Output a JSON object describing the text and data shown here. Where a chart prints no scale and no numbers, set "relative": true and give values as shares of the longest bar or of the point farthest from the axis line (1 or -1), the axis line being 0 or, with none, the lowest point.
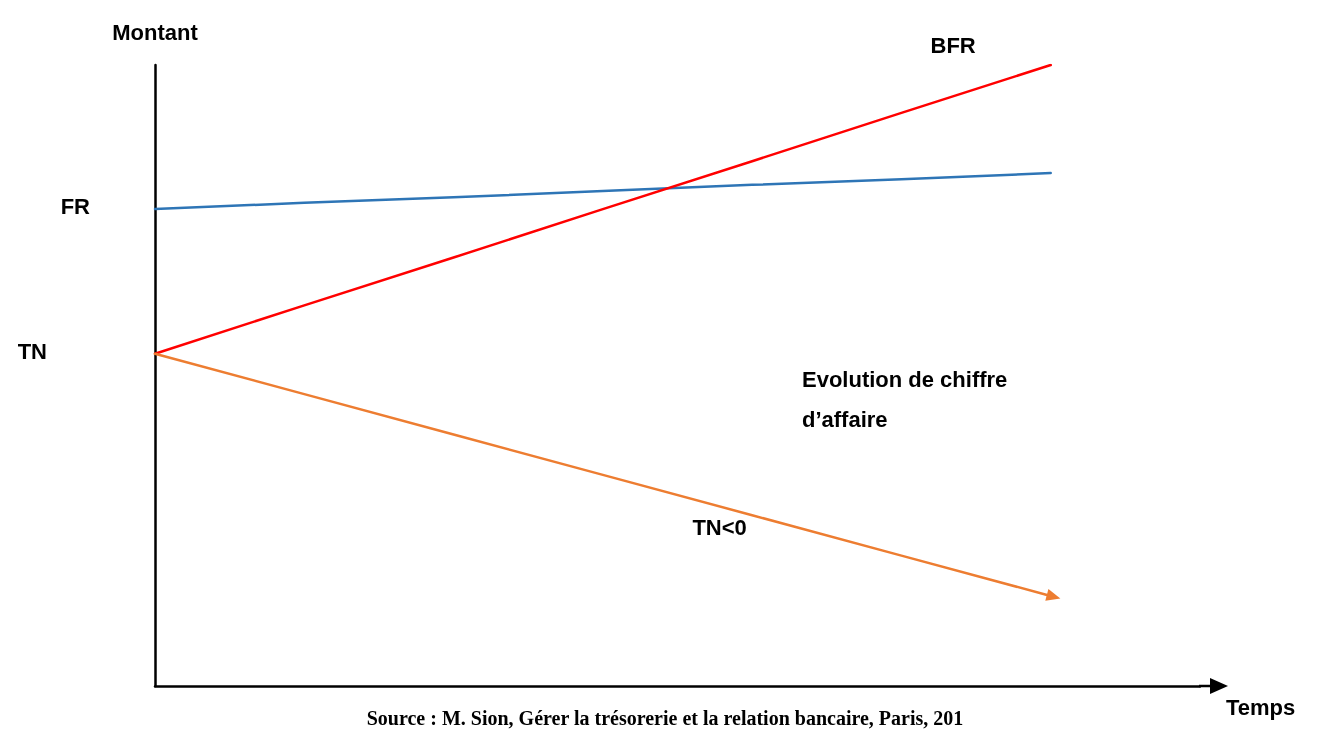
{
  "chart_data": {
    "type": "line",
    "relative": true,
    "xlabel": "Temps",
    "ylabel": "Montant",
    "categories": [
      null,
      null,
      null,
      null,
      null,
      null,
      null,
      null
    ],
    "series": [
      {
        "name": "FR",
        "color": "#2e75b6",
        "values": [
          0.768,
          0.778,
          0.787,
          0.797,
          0.807,
          0.816,
          0.826,
          null
        ]
      },
      {
        "name": "BFR",
        "color": "#ff0000",
        "values": [
          0.535,
          0.613,
          0.69,
          0.768,
          0.845,
          0.923,
          1,
          null
        ]
      },
      {
        "name": "TN<0",
        "color": "#ed7d31",
        "values": [
          0.535,
          0.47,
          0.405,
          0.34,
          0.275,
          0.21,
          0.145,
          null
        ]
      }
    ],
    "annotations": [
      "TN",
      "Evolution de chiffre\nd’affaire",
      "Source : M. Sion, Gérer la trésorerie et la relation bancaire, Paris, 201"
    ],
    "marker": "none",
    "legend": false,
    "grid": false
  }
}
